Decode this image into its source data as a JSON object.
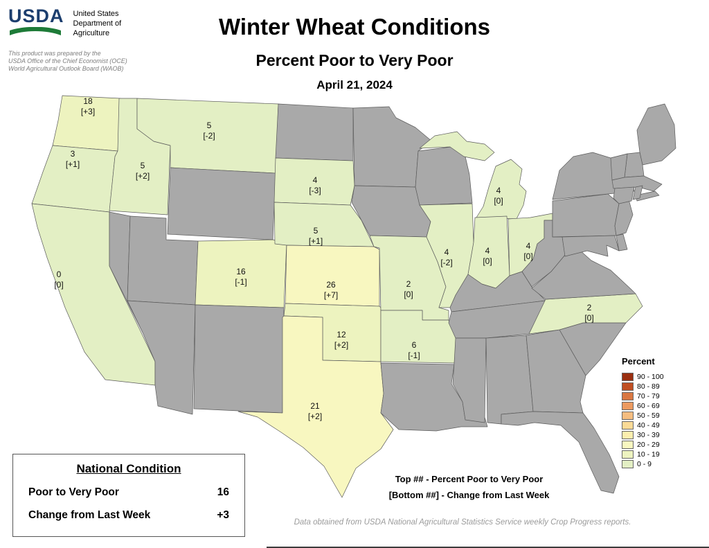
{
  "header": {
    "agency": {
      "acronym": "USDA",
      "name": "United States\nDepartment of\nAgriculture"
    },
    "prepared_by": "This product was prepared by the\nUSDA Office of the Chief Economist (OCE)\nWorld Agricultural Outlook Board (WAOB)",
    "title": "Winter Wheat Conditions",
    "subtitle": "Percent Poor to Very Poor",
    "date": "April 21, 2024"
  },
  "map": {
    "no_data_color": "#a9a9a9",
    "states": [
      {
        "id": "WA",
        "name": "Washington",
        "value": 18,
        "change": "+3"
      },
      {
        "id": "OR",
        "name": "Oregon",
        "value": 3,
        "change": "+1"
      },
      {
        "id": "ID",
        "name": "Idaho",
        "value": 5,
        "change": "+2"
      },
      {
        "id": "MT",
        "name": "Montana",
        "value": 5,
        "change": "-2"
      },
      {
        "id": "SD",
        "name": "South Dakota",
        "value": 4,
        "change": "-3"
      },
      {
        "id": "NE",
        "name": "Nebraska",
        "value": 5,
        "change": "+1"
      },
      {
        "id": "CO",
        "name": "Colorado",
        "value": 16,
        "change": "-1"
      },
      {
        "id": "KS",
        "name": "Kansas",
        "value": 26,
        "change": "+7"
      },
      {
        "id": "OK",
        "name": "Oklahoma",
        "value": 12,
        "change": "+2"
      },
      {
        "id": "TX",
        "name": "Texas",
        "value": 21,
        "change": "+2"
      },
      {
        "id": "CA",
        "name": "California",
        "value": 0,
        "change": "0"
      },
      {
        "id": "MO",
        "name": "Missouri",
        "value": 2,
        "change": "0"
      },
      {
        "id": "AR",
        "name": "Arkansas",
        "value": 6,
        "change": "-1"
      },
      {
        "id": "IL",
        "name": "Illinois",
        "value": 4,
        "change": "-2"
      },
      {
        "id": "IN",
        "name": "Indiana",
        "value": 4,
        "change": "0"
      },
      {
        "id": "OH",
        "name": "Ohio",
        "value": 4,
        "change": "0"
      },
      {
        "id": "MI",
        "name": "Michigan",
        "value": 4,
        "change": "0"
      },
      {
        "id": "NC",
        "name": "North Carolina",
        "value": 2,
        "change": "0"
      }
    ]
  },
  "legend": {
    "title": "Percent",
    "items": [
      {
        "range": "90 - 100",
        "color": "#9a2f10"
      },
      {
        "range": "80 - 89",
        "color": "#c04f22"
      },
      {
        "range": "70 - 79",
        "color": "#d97742"
      },
      {
        "range": "60 - 69",
        "color": "#ec9a60"
      },
      {
        "range": "50 - 59",
        "color": "#f5bd80"
      },
      {
        "range": "40 - 49",
        "color": "#fada96"
      },
      {
        "range": "30 - 39",
        "color": "#fceeae"
      },
      {
        "range": "20 - 29",
        "color": "#f8f7c0"
      },
      {
        "range": "10 - 19",
        "color": "#edf3bf"
      },
      {
        "range": "0 - 9",
        "color": "#e3efc4"
      }
    ]
  },
  "national": {
    "title": "National Condition",
    "rows": [
      {
        "label": "Poor to Very Poor",
        "value": "16"
      },
      {
        "label": "Change from Last Week",
        "value": "+3"
      }
    ]
  },
  "notes": {
    "line1": "Top ## - Percent Poor to Very Poor",
    "line2": "[Bottom ##] - Change from Last Week"
  },
  "footer": "Data obtained from USDA National Agricultural Statistics Service weekly Crop Progress reports."
}
